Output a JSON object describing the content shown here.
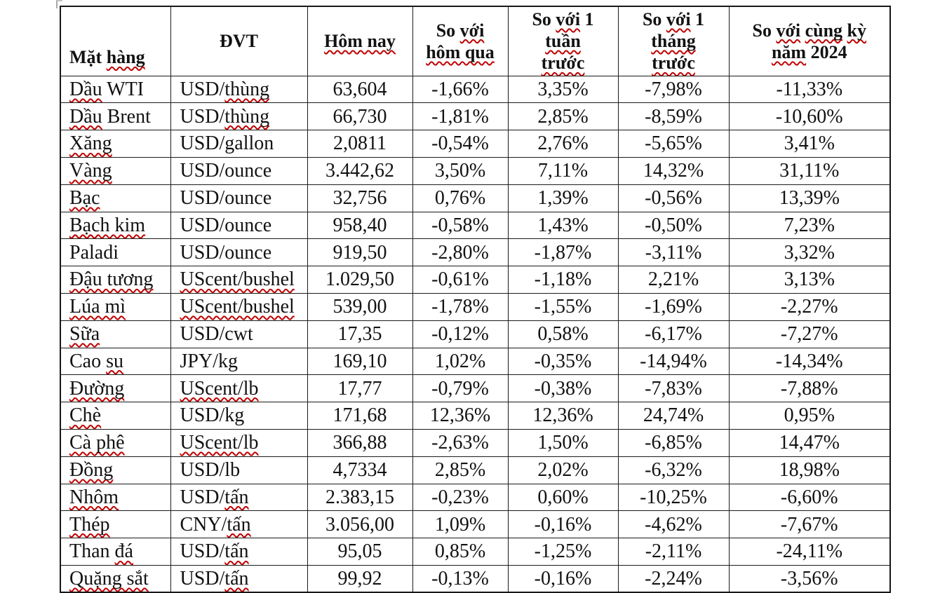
{
  "table": {
    "columns": [
      {
        "label": "Mặt hàng"
      },
      {
        "label": "ĐVT"
      },
      {
        "label": "Hôm nay"
      },
      {
        "label": "So với\nhôm qua"
      },
      {
        "label": "So với 1\ntuần\ntrước"
      },
      {
        "label": "So với 1\ntháng\ntrước"
      },
      {
        "label": "So với cùng kỳ\nnăm 2024"
      }
    ],
    "rows": [
      [
        "Dầu WTI",
        "USD/thùng",
        "63,604",
        "-1,66%",
        "3,35%",
        "-7,98%",
        "-11,33%"
      ],
      [
        "Dầu Brent",
        "USD/thùng",
        "66,730",
        "-1,81%",
        "2,85%",
        "-8,59%",
        "-10,60%"
      ],
      [
        "Xăng",
        "USD/gallon",
        "2,0811",
        "-0,54%",
        "2,76%",
        "-5,65%",
        "3,41%"
      ],
      [
        "Vàng",
        "USD/ounce",
        "3.442,62",
        "3,50%",
        "7,11%",
        "14,32%",
        "31,11%"
      ],
      [
        "Bạc",
        "USD/ounce",
        "32,756",
        "0,76%",
        "1,39%",
        "-0,56%",
        "13,39%"
      ],
      [
        "Bạch kim",
        "USD/ounce",
        "958,40",
        "-0,58%",
        "1,43%",
        "-0,50%",
        "7,23%"
      ],
      [
        "Paladi",
        "USD/ounce",
        "919,50",
        "-2,80%",
        "-1,87%",
        "-3,11%",
        "3,32%"
      ],
      [
        "Đậu tương",
        "UScent/bushel",
        "1.029,50",
        "-0,61%",
        "-1,18%",
        "2,21%",
        "3,13%"
      ],
      [
        "Lúa mì",
        "UScent/bushel",
        "539,00",
        "-1,78%",
        "-1,55%",
        "-1,69%",
        "-2,27%"
      ],
      [
        "Sữa",
        "USD/cwt",
        "17,35",
        "-0,12%",
        "0,58%",
        "-6,17%",
        "-7,27%"
      ],
      [
        "Cao su",
        "JPY/kg",
        "169,10",
        "1,02%",
        "-0,35%",
        "-14,94%",
        "-14,34%"
      ],
      [
        "Đường",
        "UScent/lb",
        "17,77",
        "-0,79%",
        "-0,38%",
        "-7,83%",
        "-7,88%"
      ],
      [
        "Chè",
        "USD/kg",
        "171,68",
        "12,36%",
        "12,36%",
        "24,74%",
        "0,95%"
      ],
      [
        "Cà phê",
        "UScent/lb",
        "366,88",
        "-2,63%",
        "1,50%",
        "-6,85%",
        "14,47%"
      ],
      [
        "Đồng",
        "USD/lb",
        "4,7334",
        "2,85%",
        "2,02%",
        "-6,32%",
        "18,98%"
      ],
      [
        "Nhôm",
        "USD/tấn",
        "2.383,15",
        "-0,23%",
        "0,60%",
        "-10,25%",
        "-6,60%"
      ],
      [
        "Thép",
        "CNY/tấn",
        "3.056,00",
        "1,09%",
        "-0,16%",
        "-4,62%",
        "-7,67%"
      ],
      [
        "Than đá",
        "USD/tấn",
        "95,05",
        "0,85%",
        "-1,25%",
        "-2,11%",
        "-24,11%"
      ],
      [
        "Quặng sắt",
        "USD/tấn",
        "99,92",
        "-0,13%",
        "-0,16%",
        "-2,24%",
        "-3,56%"
      ]
    ]
  },
  "spellcheck": {
    "underline_color": "#c00000",
    "substrings": [
      "UScent/bushel",
      "UScent/lb",
      "Đậu tương",
      "Bạch kim",
      "Quặng sắt",
      "Lúa mì",
      "Cà phê",
      "hôm qua",
      "Hôm nay",
      "hàng",
      "thùng",
      "tuần",
      "trước",
      "tháng",
      "cùng",
      "kỳ",
      "năm",
      "với",
      "Dầu",
      "Xăng",
      "Vàng",
      "Bạc",
      "Sữa",
      "su",
      "Đường",
      "Chè",
      "Đồng",
      "Nhôm",
      "tấn",
      "Thép",
      "đá"
    ]
  }
}
